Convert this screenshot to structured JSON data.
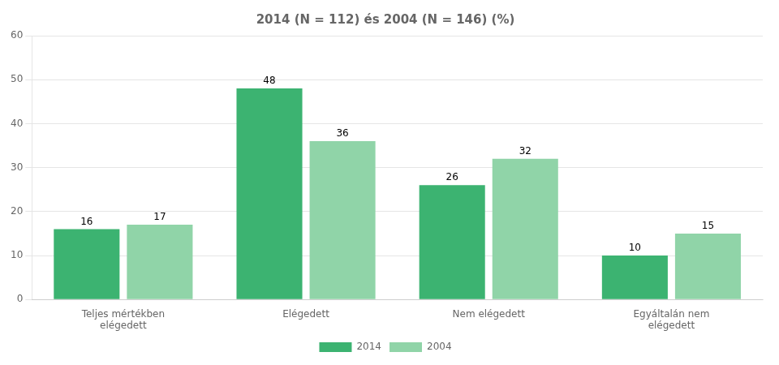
{
  "chart_data": {
    "type": "bar",
    "title": "2014 (Ν = 112) és 2004 (Ν = 146) (%)",
    "categories": [
      "Teljes mértékben\nelégedett",
      "Elégedett",
      "Nem elégedett",
      "Egyáltalán nem\nelégedett"
    ],
    "series": [
      {
        "name": "2014",
        "color": "#3cb371",
        "values": [
          16,
          48,
          26,
          10
        ]
      },
      {
        "name": "2004",
        "color": "#90d4a8",
        "values": [
          17,
          36,
          32,
          15
        ]
      }
    ],
    "ylim": [
      0,
      60
    ],
    "yticks": [
      0,
      10,
      20,
      30,
      40,
      50,
      60
    ],
    "grid": true,
    "legend": "bottom",
    "data_labels": true
  }
}
